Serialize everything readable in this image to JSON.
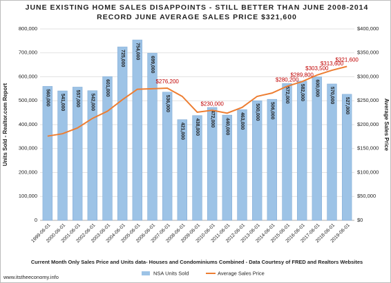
{
  "chart_data": {
    "type": "bar",
    "title": "JUNE EXISTING HOME SALES DISAPPOINTS - STILL BETTER THAN JUNE 2008-2014",
    "subtitle": "RECORD JUNE AVERAGE SALES PRICE $321,600",
    "categories": [
      "1999-06-01",
      "2000-06-01",
      "2001-06-01",
      "2002-06-01",
      "2003-06-01",
      "2004-06-01",
      "2005-06-01",
      "2006-06-01",
      "2007-06-01",
      "2008-06-01",
      "2009-06-01",
      "2010-06-01",
      "2011-06-01",
      "2012-06-01",
      "2013-06-01",
      "2014-06-01",
      "2015-06-01",
      "2016-06-01",
      "2017-06-01",
      "2018-06-01",
      "2019-06-01"
    ],
    "series": [
      {
        "name": "NSA Units Sold",
        "color": "#9dc3e6",
        "type": "bar",
        "values": [
          560000,
          541000,
          557000,
          542000,
          601000,
          725000,
          754000,
          699000,
          536000,
          421000,
          438000,
          472000,
          440000,
          463000,
          500000,
          506000,
          572000,
          582000,
          600000,
          570000,
          527000
        ],
        "value_labels": [
          "560,000",
          "541,000",
          "557,000",
          "542,000",
          "601,000",
          "725,000",
          "754,000",
          "699,000",
          "536,000",
          "421,000",
          "438,000",
          "472,000",
          "440,000",
          "463,000",
          "500,000",
          "506,000",
          "572,000",
          "582,000",
          "600,000",
          "570,000",
          "527,000"
        ]
      },
      {
        "name": "Average Sales Price",
        "color": "#ed7d31",
        "type": "line",
        "axis": "y2",
        "values": [
          176000,
          181000,
          193000,
          213000,
          228000,
          252000,
          274000,
          275000,
          276200,
          259000,
          226000,
          230000,
          224000,
          236000,
          259000,
          266000,
          280200,
          289800,
          303500,
          313600,
          321600
        ],
        "value_labels": [
          null,
          null,
          null,
          null,
          null,
          null,
          null,
          null,
          "$276,200",
          null,
          null,
          "$230,000",
          null,
          null,
          null,
          null,
          "$280,200",
          "$289,800",
          "$303,500",
          "$313,600",
          "$321,600"
        ]
      }
    ],
    "ylim": [
      0,
      800000
    ],
    "yticks": [
      0,
      {
        "value": 100000,
        "label": "100,000"
      },
      {
        "value": 200000,
        "label": "200,000"
      },
      {
        "value": 300000,
        "label": "300,000"
      },
      {
        "value": 400000,
        "label": "400,000"
      },
      {
        "value": 500000,
        "label": "500,000"
      },
      {
        "value": 600000,
        "label": "600,000"
      },
      {
        "value": 700000,
        "label": "700,000"
      },
      {
        "value": 800000,
        "label": "800,000"
      }
    ],
    "y2lim": [
      0,
      400000
    ],
    "y2ticks": [
      {
        "value": 0,
        "label": "$0"
      },
      {
        "value": 50000,
        "label": "$50,000"
      },
      {
        "value": 100000,
        "label": "$100,000"
      },
      {
        "value": 150000,
        "label": "$150,000"
      },
      {
        "value": 200000,
        "label": "$200,000"
      },
      {
        "value": 250000,
        "label": "$250,000"
      },
      {
        "value": 300000,
        "label": "$300,000"
      },
      {
        "value": 350000,
        "label": "$350,000"
      },
      {
        "value": 400000,
        "label": "$400,000"
      }
    ],
    "ylabel": "Units Sold - Realtor.com Report",
    "y2label": "Average Sales Price",
    "note": "Current Month Only Sales Price and Units data- Houses and Condominiums Combined - Data Courtesy of FRED and Realtors Websites",
    "source": "www.itstheeconomy.info",
    "grid": true
  }
}
